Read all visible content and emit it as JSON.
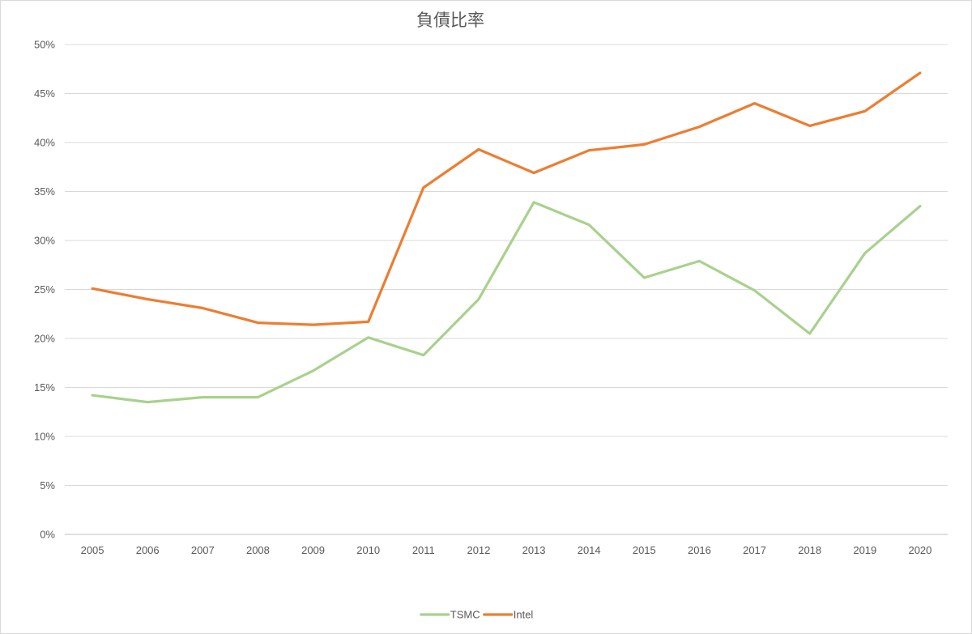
{
  "chart_data": {
    "type": "line",
    "title": "負債比率",
    "xlabel": "",
    "ylabel": "",
    "categories": [
      "2005",
      "2006",
      "2007",
      "2008",
      "2009",
      "2010",
      "2011",
      "2012",
      "2013",
      "2014",
      "2015",
      "2016",
      "2017",
      "2018",
      "2019",
      "2020"
    ],
    "y_ticks": [
      "0%",
      "5%",
      "10%",
      "15%",
      "20%",
      "25%",
      "30%",
      "35%",
      "40%",
      "45%",
      "50%"
    ],
    "ylim": [
      0,
      50
    ],
    "grid": true,
    "legend_position": "bottom",
    "series": [
      {
        "name": "TSMC",
        "color": "#a9d18e",
        "values": [
          14.2,
          13.5,
          14.0,
          14.0,
          16.7,
          20.1,
          18.3,
          24.0,
          33.9,
          31.6,
          26.2,
          27.9,
          24.9,
          20.5,
          28.7,
          33.5
        ]
      },
      {
        "name": "Intel",
        "color": "#ed7d31",
        "values": [
          25.1,
          24.0,
          23.1,
          21.6,
          21.4,
          21.7,
          35.4,
          39.3,
          36.9,
          39.2,
          39.8,
          41.6,
          44.0,
          41.7,
          43.2,
          47.1
        ]
      }
    ]
  }
}
